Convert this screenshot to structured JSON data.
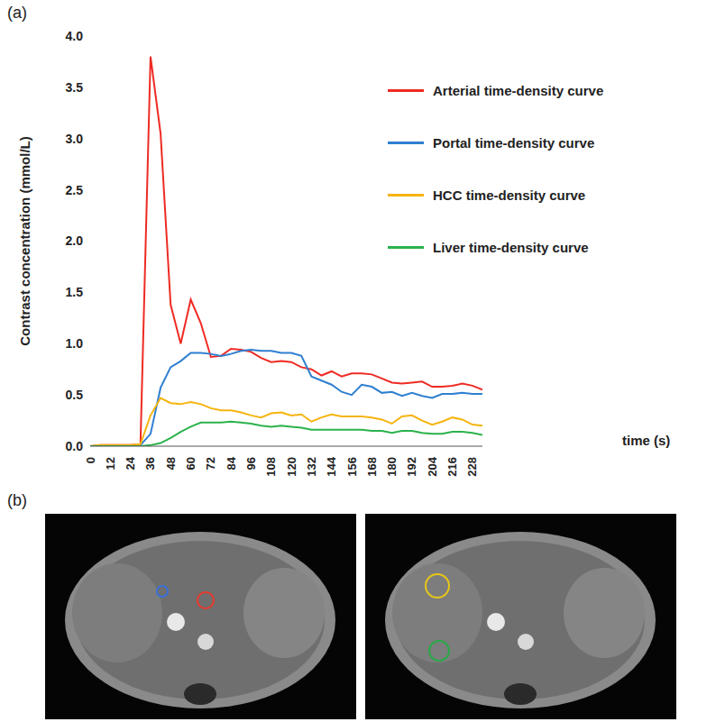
{
  "chart_data": {
    "type": "line",
    "panel": "(a)",
    "y_label": "Contrast concentration (mmol/L)",
    "x_label": "time (s)",
    "x": [
      0,
      6,
      12,
      18,
      24,
      30,
      36,
      42,
      48,
      54,
      60,
      66,
      72,
      78,
      84,
      90,
      96,
      102,
      108,
      114,
      120,
      126,
      132,
      138,
      144,
      150,
      156,
      162,
      168,
      174,
      180,
      186,
      192,
      198,
      204,
      210,
      216,
      222,
      228,
      234
    ],
    "series": [
      {
        "name": "Arterial time-density curve",
        "color": "#ee2b24",
        "values": [
          0,
          0.01,
          0.01,
          0.01,
          0.01,
          0.02,
          3.8,
          3.05,
          1.38,
          1.0,
          1.43,
          1.2,
          0.87,
          0.88,
          0.95,
          0.94,
          0.92,
          0.86,
          0.82,
          0.83,
          0.82,
          0.77,
          0.75,
          0.69,
          0.73,
          0.68,
          0.71,
          0.71,
          0.7,
          0.66,
          0.62,
          0.61,
          0.62,
          0.63,
          0.58,
          0.58,
          0.59,
          0.61,
          0.59,
          0.55
        ]
      },
      {
        "name": "Portal time-density curve",
        "color": "#2f7fd0",
        "values": [
          0,
          0,
          0,
          0,
          0,
          0.01,
          0.12,
          0.57,
          0.77,
          0.83,
          0.91,
          0.91,
          0.9,
          0.88,
          0.9,
          0.93,
          0.94,
          0.93,
          0.93,
          0.91,
          0.91,
          0.88,
          0.68,
          0.64,
          0.6,
          0.53,
          0.5,
          0.6,
          0.58,
          0.52,
          0.53,
          0.49,
          0.52,
          0.49,
          0.47,
          0.51,
          0.51,
          0.52,
          0.51,
          0.51
        ]
      },
      {
        "name": "HCC time-density curve",
        "color": "#f6b40f",
        "values": [
          0,
          0.01,
          0.01,
          0.01,
          0.01,
          0.02,
          0.3,
          0.47,
          0.42,
          0.41,
          0.43,
          0.41,
          0.37,
          0.35,
          0.35,
          0.33,
          0.3,
          0.28,
          0.32,
          0.33,
          0.3,
          0.31,
          0.24,
          0.28,
          0.31,
          0.29,
          0.29,
          0.29,
          0.28,
          0.26,
          0.22,
          0.29,
          0.3,
          0.25,
          0.21,
          0.24,
          0.28,
          0.26,
          0.21,
          0.2
        ]
      },
      {
        "name": "Liver time-density curve",
        "color": "#2bb24c",
        "values": [
          0,
          0,
          0,
          0,
          0,
          0,
          0.01,
          0.03,
          0.08,
          0.14,
          0.19,
          0.23,
          0.23,
          0.23,
          0.24,
          0.23,
          0.22,
          0.2,
          0.19,
          0.2,
          0.19,
          0.18,
          0.16,
          0.16,
          0.16,
          0.16,
          0.16,
          0.16,
          0.15,
          0.15,
          0.13,
          0.15,
          0.15,
          0.13,
          0.12,
          0.12,
          0.14,
          0.14,
          0.13,
          0.11
        ]
      }
    ],
    "xlim": [
      0,
      234
    ],
    "xticks": [
      0,
      12,
      24,
      36,
      48,
      60,
      72,
      84,
      96,
      108,
      120,
      132,
      144,
      156,
      168,
      180,
      192,
      204,
      216,
      228
    ],
    "ylim": [
      0,
      4
    ],
    "yticks": [
      {
        "value": 0,
        "label": "0.0"
      },
      0.5,
      {
        "value": 1,
        "label": "1.0"
      },
      1.5,
      {
        "value": 2,
        "label": "2.0"
      },
      2.5,
      {
        "value": 3,
        "label": "3.0"
      },
      3.5,
      {
        "value": 4,
        "label": "4.0"
      }
    ],
    "grid": false,
    "legend": "upper right"
  },
  "panel_labels": [
    "(b)"
  ]
}
